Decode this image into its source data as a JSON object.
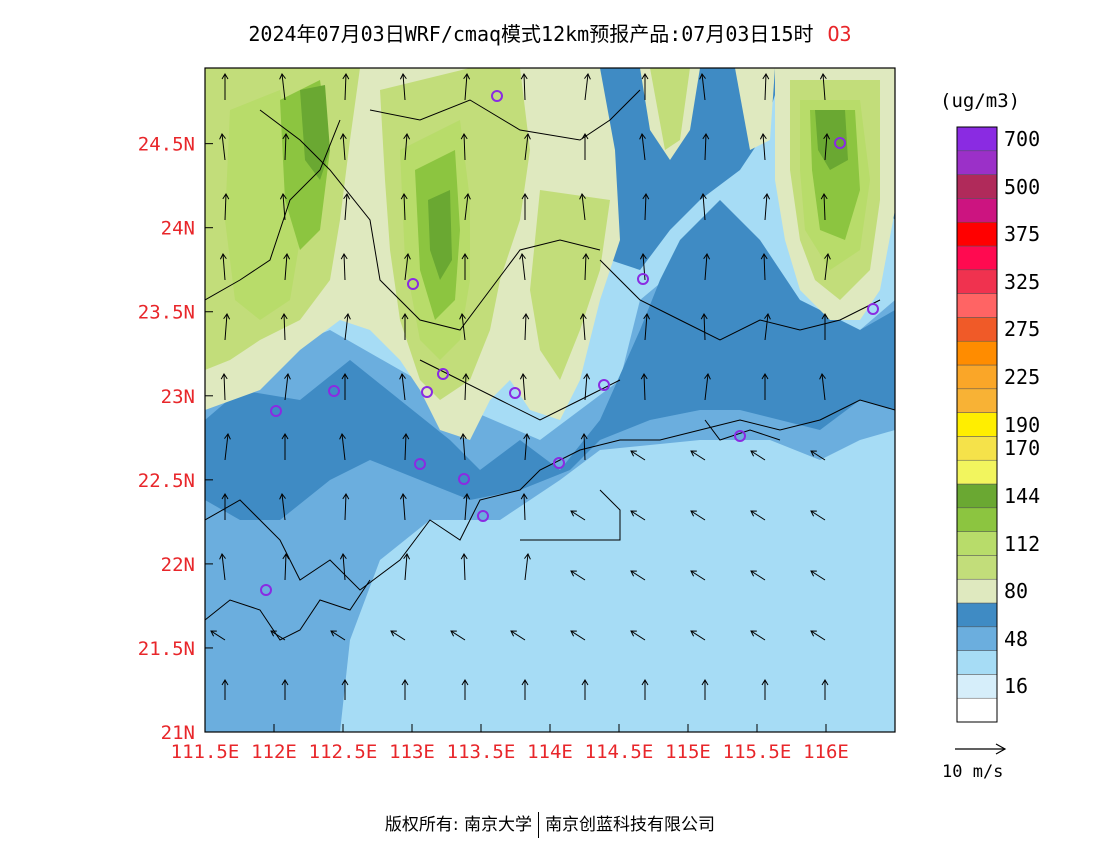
{
  "title": {
    "text": "2024年07月03日WRF/cmaq模式12km预报产品:07月03日15时",
    "species": "O3"
  },
  "colors": {
    "axis_labels": "#e8262a",
    "coast_lines": "#000000",
    "wind_arrows": "#000000",
    "station_markers": "#8a2be2"
  },
  "map": {
    "lon_range": [
      111.5,
      116.5
    ],
    "lat_range": [
      21,
      24.95
    ],
    "x_ticks": [
      {
        "value": 111.5,
        "label": "111.5E"
      },
      {
        "value": 112,
        "label": "112E"
      },
      {
        "value": 112.5,
        "label": "112.5E"
      },
      {
        "value": 113,
        "label": "113E"
      },
      {
        "value": 113.5,
        "label": "113.5E"
      },
      {
        "value": 114,
        "label": "114E"
      },
      {
        "value": 114.5,
        "label": "114.5E"
      },
      {
        "value": 115,
        "label": "115E"
      },
      {
        "value": 115.5,
        "label": "115.5E"
      },
      {
        "value": 116,
        "label": "116E"
      }
    ],
    "y_ticks": [
      {
        "value": 21,
        "label": "21N"
      },
      {
        "value": 21.5,
        "label": "21.5N"
      },
      {
        "value": 22,
        "label": "22N"
      },
      {
        "value": 22.5,
        "label": "22.5N"
      },
      {
        "value": 23,
        "label": "23N"
      },
      {
        "value": 23.5,
        "label": "23.5N"
      },
      {
        "value": 24,
        "label": "24N"
      },
      {
        "value": 24.5,
        "label": "24.5N"
      }
    ]
  },
  "colorbar": {
    "unit": "(ug/m3)",
    "levels": [
      {
        "color": "#ffffff",
        "label": ""
      },
      {
        "color": "#d6eefa",
        "label": "16"
      },
      {
        "color": "#a6dcf5",
        "label": ""
      },
      {
        "color": "#6baede",
        "label": "48"
      },
      {
        "color": "#3f8bc4",
        "label": ""
      },
      {
        "color": "#dfe9bf",
        "label": "80"
      },
      {
        "color": "#c2dd7a",
        "label": ""
      },
      {
        "color": "#b8dc6a",
        "label": "112"
      },
      {
        "color": "#8cc540",
        "label": ""
      },
      {
        "color": "#6aa832",
        "label": "144"
      },
      {
        "color": "#f2f55e",
        "label": ""
      },
      {
        "color": "#f5e24a",
        "label": "170"
      },
      {
        "color": "#ffee00",
        "label": "190"
      },
      {
        "color": "#f8b235",
        "label": ""
      },
      {
        "color": "#faa628",
        "label": "225"
      },
      {
        "color": "#ff8c00",
        "label": ""
      },
      {
        "color": "#f05a28",
        "label": "275"
      },
      {
        "color": "#ff6464",
        "label": ""
      },
      {
        "color": "#f0324f",
        "label": "325"
      },
      {
        "color": "#ff0a50",
        "label": ""
      },
      {
        "color": "#ff0000",
        "label": "375"
      },
      {
        "color": "#cc1480",
        "label": ""
      },
      {
        "color": "#b02a5a",
        "label": "500"
      },
      {
        "color": "#9b30c8",
        "label": ""
      },
      {
        "color": "#8a2be2",
        "label": "700"
      }
    ]
  },
  "wind_reference": {
    "label": "10 m/s"
  },
  "footer": {
    "left": "版权所有: 南京大学",
    "right": "南京创蓝科技有限公司"
  }
}
